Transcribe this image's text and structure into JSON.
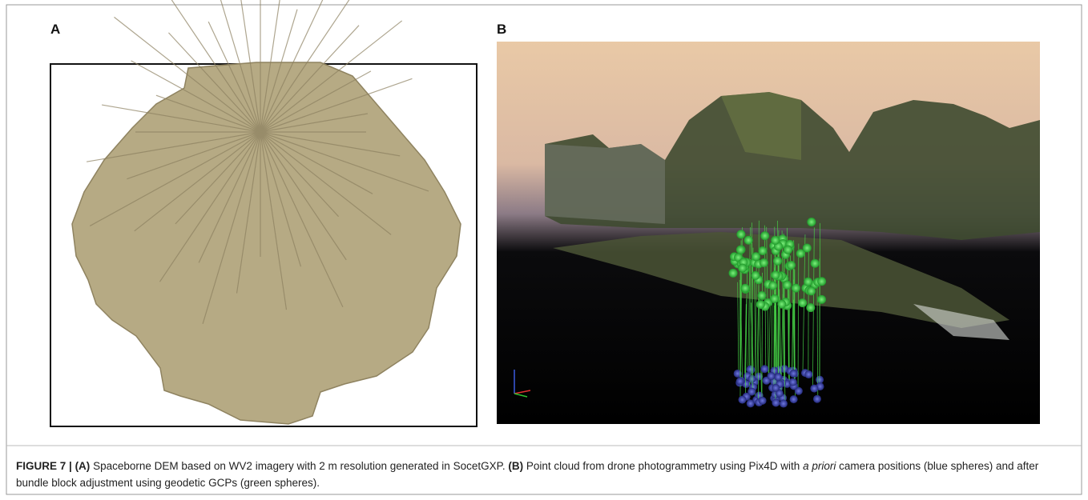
{
  "panels": [
    {
      "label": "A"
    },
    {
      "label": "B"
    }
  ],
  "caption": {
    "figure_label": "FIGURE 7 |",
    "a_marker": "(A)",
    "a_text": "Spaceborne DEM based on WV2 imagery with 2 m resolution generated in SocetGXP.",
    "b_marker": "(B)",
    "b_text_1": "Point cloud from drone photogrammetry using Pix4D with",
    "b_italic": "a priori",
    "b_text_2": "camera positions (blue spheres) and after bundle block adjustment using geodetic GCPs (green spheres)."
  }
}
